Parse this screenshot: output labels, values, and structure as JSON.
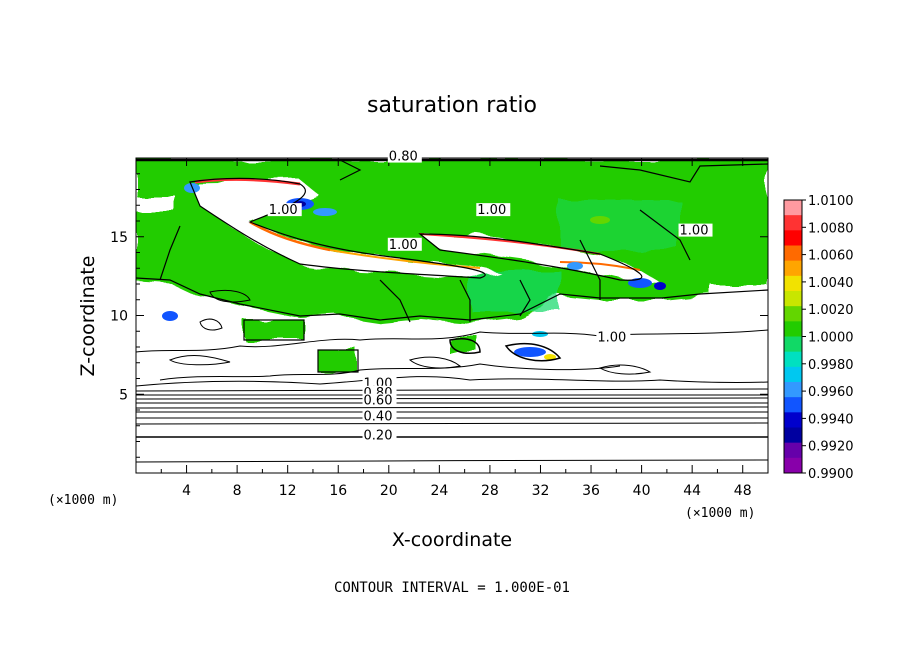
{
  "chart_data": {
    "type": "heatmap",
    "title": "saturation ratio",
    "xlabel": "X-coordinate",
    "ylabel": "Z-coordinate",
    "x_unit": "(×1000 m)",
    "y_unit": "(×1000 m)",
    "xlim": [
      0,
      50
    ],
    "ylim": [
      0,
      20
    ],
    "x_ticks": [
      4,
      8,
      12,
      16,
      20,
      24,
      28,
      32,
      36,
      40,
      44,
      48
    ],
    "y_ticks": [
      5,
      10,
      15
    ],
    "colorbar": {
      "ticks": [
        "1.0100",
        "1.0080",
        "1.0060",
        "1.0040",
        "1.0020",
        "1.0000",
        "0.9980",
        "0.9960",
        "0.9940",
        "0.9920",
        "0.9900"
      ],
      "colors": [
        "#ff9aa0",
        "#ff3333",
        "#ff0000",
        "#ff6a00",
        "#ffa500",
        "#f2e200",
        "#c8e600",
        "#63d600",
        "#22cc00",
        "#11d966",
        "#00e0c0",
        "#00c8f0",
        "#3399ff",
        "#1155ff",
        "#0000cc",
        "#0000a0",
        "#6600aa",
        "#8800aa"
      ],
      "range": [
        0.99,
        1.01
      ]
    },
    "contour_labels": [
      {
        "text": "0.80",
        "x": 20,
        "y": 19.9
      },
      {
        "text": "1.00",
        "x": 10.5,
        "y": 16.5
      },
      {
        "text": "1.00",
        "x": 27,
        "y": 16.5
      },
      {
        "text": "1.00",
        "x": 20,
        "y": 14.3
      },
      {
        "text": "1.00",
        "x": 43,
        "y": 15.2
      },
      {
        "text": "1.00",
        "x": 36.5,
        "y": 8.4
      },
      {
        "text": "1.00",
        "x": 18,
        "y": 5.5
      },
      {
        "text": "0.80",
        "x": 18,
        "y": 4.9
      },
      {
        "text": "0.60",
        "x": 18,
        "y": 4.4
      },
      {
        "text": "0.40",
        "x": 18,
        "y": 3.4
      },
      {
        "text": "0.20",
        "x": 18,
        "y": 2.2
      }
    ],
    "footer": "CONTOUR INTERVAL = 1.000E-01"
  }
}
